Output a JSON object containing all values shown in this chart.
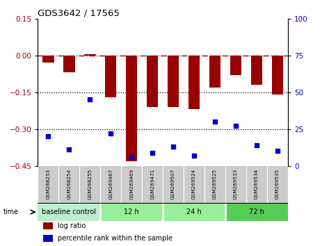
{
  "title": "GDS3642 / 17565",
  "samples": [
    "GSM268253",
    "GSM268254",
    "GSM268255",
    "GSM269467",
    "GSM269469",
    "GSM269471",
    "GSM269507",
    "GSM269524",
    "GSM269525",
    "GSM269533",
    "GSM269534",
    "GSM269535"
  ],
  "log_ratio": [
    -0.03,
    -0.07,
    0.005,
    -0.17,
    -0.43,
    -0.21,
    -0.21,
    -0.22,
    -0.13,
    -0.08,
    -0.12,
    -0.16
  ],
  "percentile_rank": [
    20,
    11,
    45,
    22,
    6,
    9,
    13,
    7,
    30,
    27,
    14,
    10
  ],
  "bar_color": "#990000",
  "dot_color": "#0000cc",
  "ylim_left": [
    -0.45,
    0.15
  ],
  "ylim_right": [
    0,
    100
  ],
  "yticks_left": [
    0.15,
    0.0,
    -0.15,
    -0.3,
    -0.45
  ],
  "yticks_right": [
    100,
    75,
    50,
    25,
    0
  ],
  "hline_dash": 0,
  "hlines_dot": [
    -0.15,
    -0.3
  ],
  "groups": [
    {
      "label": "baseline control",
      "start": 0,
      "end": 3,
      "color": "#bbeecc"
    },
    {
      "label": "12 h",
      "start": 3,
      "end": 6,
      "color": "#99ee99"
    },
    {
      "label": "24 h",
      "start": 6,
      "end": 9,
      "color": "#99ee99"
    },
    {
      "label": "72 h",
      "start": 9,
      "end": 12,
      "color": "#55cc55"
    }
  ],
  "time_label": "time",
  "legend_log_ratio": "log ratio",
  "legend_percentile": "percentile rank within the sample",
  "bg_color": "#ffffff",
  "plot_bg": "#ffffff",
  "label_bg": "#cccccc"
}
